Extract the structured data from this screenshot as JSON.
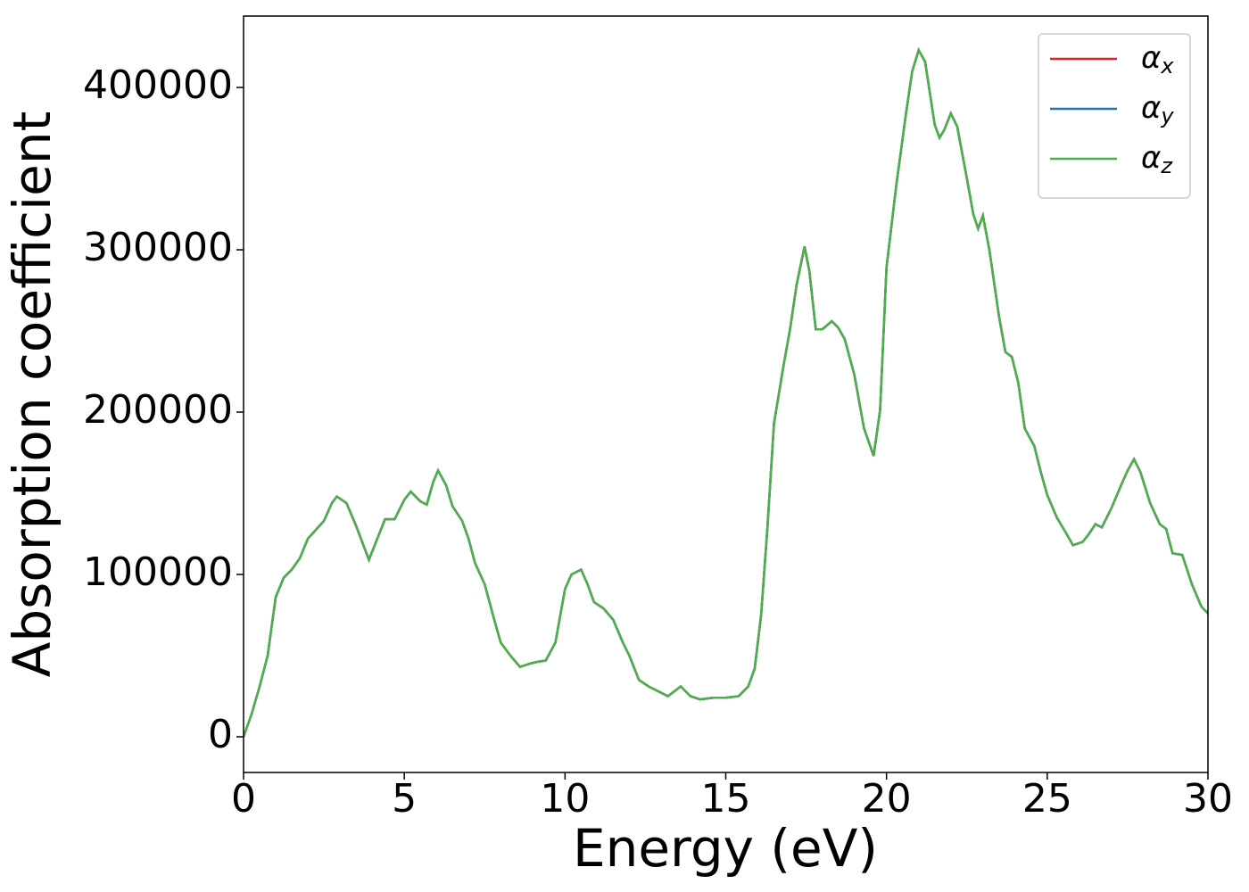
{
  "chart_data": {
    "type": "line",
    "xlabel": "Energy (eV)",
    "ylabel": "Absorption coefficient",
    "x": [
      0,
      0.25,
      0.5,
      0.75,
      1.0,
      1.25,
      1.5,
      1.75,
      2.0,
      2.5,
      2.75,
      2.9,
      3.2,
      3.5,
      3.9,
      4.2,
      4.4,
      4.7,
      5.0,
      5.2,
      5.5,
      5.7,
      5.9,
      6.05,
      6.3,
      6.5,
      6.8,
      7.0,
      7.2,
      7.5,
      7.8,
      8.0,
      8.3,
      8.6,
      8.9,
      9.1,
      9.4,
      9.7,
      10.0,
      10.2,
      10.5,
      10.7,
      10.9,
      11.2,
      11.5,
      11.8,
      12.0,
      12.3,
      12.6,
      12.9,
      13.2,
      13.6,
      13.9,
      14.2,
      14.6,
      15.0,
      15.4,
      15.7,
      15.9,
      16.1,
      16.3,
      16.5,
      16.8,
      17.0,
      17.2,
      17.45,
      17.6,
      17.8,
      18.0,
      18.3,
      18.5,
      18.7,
      19.0,
      19.3,
      19.6,
      19.8,
      20.0,
      20.3,
      20.6,
      20.8,
      21.0,
      21.2,
      21.5,
      21.65,
      21.8,
      22.0,
      22.2,
      22.5,
      22.7,
      22.85,
      23.0,
      23.2,
      23.5,
      23.7,
      23.9,
      24.1,
      24.3,
      24.6,
      24.8,
      25.0,
      25.3,
      25.6,
      25.8,
      26.1,
      26.3,
      26.5,
      26.7,
      27.0,
      27.3,
      27.5,
      27.7,
      27.9,
      28.2,
      28.5,
      28.7,
      28.9,
      29.2,
      29.5,
      29.8,
      30.0
    ],
    "series": [
      {
        "name": "αx",
        "color": "#d62728",
        "values": [
          0,
          14000,
          31000,
          50000,
          86000,
          98000,
          103000,
          110000,
          122000,
          133000,
          144000,
          148000,
          144000,
          130000,
          109000,
          124000,
          134000,
          134000,
          146000,
          151000,
          145000,
          143000,
          157000,
          164000,
          155000,
          142000,
          133000,
          122000,
          107000,
          94000,
          72000,
          58000,
          50000,
          43000,
          45000,
          46000,
          47000,
          58000,
          91000,
          100000,
          103000,
          94000,
          83000,
          79000,
          72000,
          58000,
          50000,
          35000,
          31000,
          28000,
          25000,
          31000,
          25000,
          23000,
          24000,
          24000,
          25000,
          31000,
          42000,
          75000,
          130000,
          193000,
          229000,
          251000,
          278000,
          302000,
          287000,
          251000,
          251000,
          256000,
          252000,
          245000,
          223000,
          190000,
          173000,
          201000,
          289000,
          339000,
          383000,
          410000,
          423000,
          416000,
          377000,
          369000,
          374000,
          384000,
          376000,
          344000,
          322000,
          313000,
          321000,
          300000,
          259000,
          237000,
          234000,
          218000,
          190000,
          179000,
          163000,
          149000,
          135000,
          125000,
          118000,
          120000,
          125000,
          131000,
          129000,
          141000,
          155000,
          164000,
          171000,
          163000,
          144000,
          131000,
          128000,
          113000,
          112000,
          94000,
          80000,
          76000
        ]
      },
      {
        "name": "αy",
        "color": "#1f77b4",
        "values": [
          0,
          14000,
          31000,
          50000,
          86000,
          98000,
          103000,
          110000,
          122000,
          133000,
          144000,
          148000,
          144000,
          130000,
          109000,
          124000,
          134000,
          134000,
          146000,
          151000,
          145000,
          143000,
          157000,
          164000,
          155000,
          142000,
          133000,
          122000,
          107000,
          94000,
          72000,
          58000,
          50000,
          43000,
          45000,
          46000,
          47000,
          58000,
          91000,
          100000,
          103000,
          94000,
          83000,
          79000,
          72000,
          58000,
          50000,
          35000,
          31000,
          28000,
          25000,
          31000,
          25000,
          23000,
          24000,
          24000,
          25000,
          31000,
          42000,
          75000,
          130000,
          193000,
          229000,
          251000,
          278000,
          302000,
          287000,
          251000,
          251000,
          256000,
          252000,
          245000,
          223000,
          190000,
          173000,
          201000,
          289000,
          339000,
          383000,
          410000,
          423000,
          416000,
          377000,
          369000,
          374000,
          384000,
          376000,
          344000,
          322000,
          313000,
          321000,
          300000,
          259000,
          237000,
          234000,
          218000,
          190000,
          179000,
          163000,
          149000,
          135000,
          125000,
          118000,
          120000,
          125000,
          131000,
          129000,
          141000,
          155000,
          164000,
          171000,
          163000,
          144000,
          131000,
          128000,
          113000,
          112000,
          94000,
          80000,
          76000
        ]
      },
      {
        "name": "αz",
        "color": "#4daf4a",
        "values": [
          0,
          14000,
          31000,
          50000,
          86000,
          98000,
          103000,
          110000,
          122000,
          133000,
          144000,
          148000,
          144000,
          130000,
          109000,
          124000,
          134000,
          134000,
          146000,
          151000,
          145000,
          143000,
          157000,
          164000,
          155000,
          142000,
          133000,
          122000,
          107000,
          94000,
          72000,
          58000,
          50000,
          43000,
          45000,
          46000,
          47000,
          58000,
          91000,
          100000,
          103000,
          94000,
          83000,
          79000,
          72000,
          58000,
          50000,
          35000,
          31000,
          28000,
          25000,
          31000,
          25000,
          23000,
          24000,
          24000,
          25000,
          31000,
          42000,
          75000,
          130000,
          193000,
          229000,
          251000,
          278000,
          302000,
          287000,
          251000,
          251000,
          256000,
          252000,
          245000,
          223000,
          190000,
          173000,
          201000,
          289000,
          339000,
          383000,
          410000,
          423000,
          416000,
          377000,
          369000,
          374000,
          384000,
          376000,
          344000,
          322000,
          313000,
          321000,
          300000,
          259000,
          237000,
          234000,
          218000,
          190000,
          179000,
          163000,
          149000,
          135000,
          125000,
          118000,
          120000,
          125000,
          131000,
          129000,
          141000,
          155000,
          164000,
          171000,
          163000,
          144000,
          131000,
          128000,
          113000,
          112000,
          94000,
          80000,
          76000
        ]
      }
    ],
    "xlim": [
      0,
      30
    ],
    "xticks": [
      0,
      5,
      10,
      15,
      20,
      25,
      30
    ],
    "ylim": [
      -22000,
      444000
    ],
    "yticks": [
      0,
      100000,
      200000,
      300000,
      400000
    ],
    "legend": "upper right"
  }
}
